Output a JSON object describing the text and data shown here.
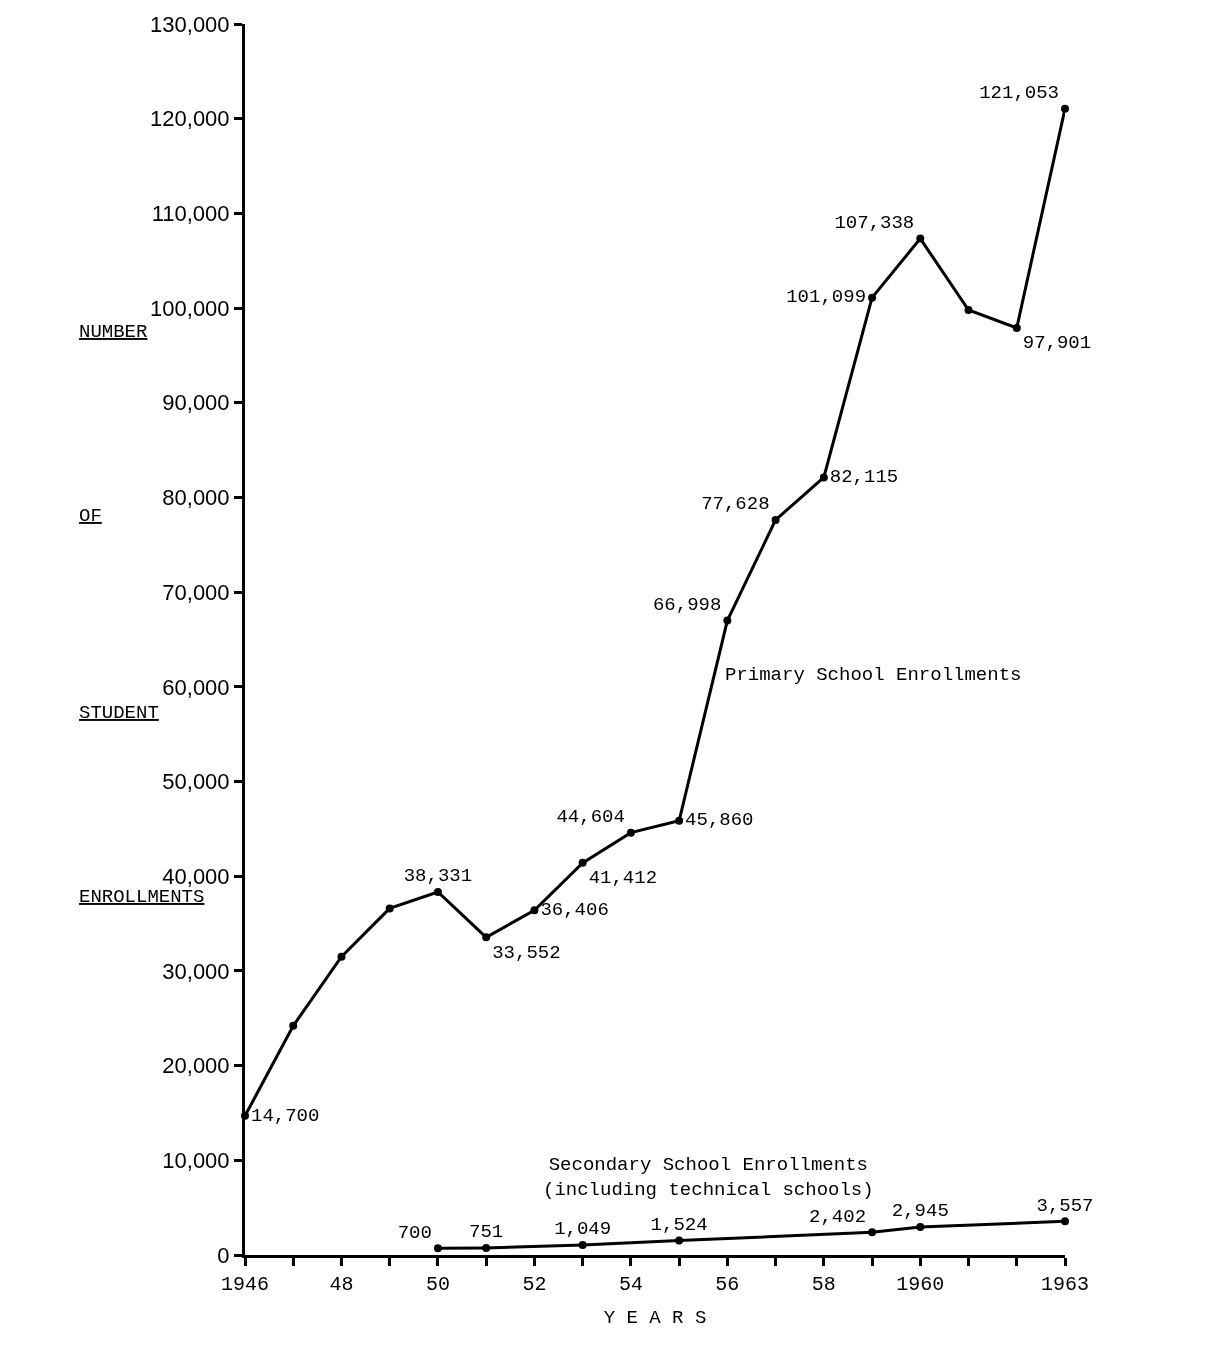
{
  "chart_data": {
    "type": "line",
    "xlabel": "Y E A R S",
    "ylabel": "NUMBER\nOF\nSTUDENT\nENROLLMENTS",
    "xlim": [
      1946,
      1963
    ],
    "xticks": [
      {
        "value": 1946,
        "label": "1946"
      },
      {
        "value": 1947,
        "label": null
      },
      {
        "value": 1948,
        "label": "48"
      },
      {
        "value": 1949,
        "label": null
      },
      {
        "value": 1950,
        "label": "50"
      },
      {
        "value": 1951,
        "label": null
      },
      {
        "value": 1952,
        "label": "52"
      },
      {
        "value": 1953,
        "label": null
      },
      {
        "value": 1954,
        "label": "54"
      },
      {
        "value": 1955,
        "label": null
      },
      {
        "value": 1956,
        "label": "56"
      },
      {
        "value": 1957,
        "label": null
      },
      {
        "value": 1958,
        "label": "58"
      },
      {
        "value": 1959,
        "label": null
      },
      {
        "value": 1960,
        "label": "1960"
      },
      {
        "value": 1961,
        "label": null
      },
      {
        "value": 1962,
        "label": null
      },
      {
        "value": 1963,
        "label": "1963"
      }
    ],
    "ylim": [
      0,
      130000
    ],
    "yticks": [
      {
        "value": 0,
        "label": "0"
      },
      {
        "value": 10000,
        "label": "10,000"
      },
      {
        "value": 20000,
        "label": "20,000"
      },
      {
        "value": 30000,
        "label": "30,000"
      },
      {
        "value": 40000,
        "label": "40,000"
      },
      {
        "value": 50000,
        "label": "50,000"
      },
      {
        "value": 60000,
        "label": "60,000"
      },
      {
        "value": 70000,
        "label": "70,000"
      },
      {
        "value": 80000,
        "label": "80,000"
      },
      {
        "value": 90000,
        "label": "90,000"
      },
      {
        "value": 100000,
        "label": "100,000"
      },
      {
        "value": 110000,
        "label": "110,000"
      },
      {
        "value": 120000,
        "label": "120,000"
      },
      {
        "value": 130000,
        "label": "130,000"
      }
    ],
    "legend": false,
    "marker": "circle",
    "line_style": "solid",
    "series": [
      {
        "name": "Primary School Enrollments",
        "color": "#000000",
        "x": [
          1946,
          1947,
          1948,
          1949,
          1950,
          1951,
          1952,
          1953,
          1954,
          1955,
          1956,
          1957,
          1958,
          1959,
          1960,
          1961,
          1962,
          1963
        ],
        "values": [
          14700,
          24200,
          31500,
          36600,
          38331,
          33552,
          36406,
          41412,
          44604,
          45860,
          66998,
          77628,
          82115,
          101099,
          107338,
          99800,
          97901,
          121053
        ],
        "value_labels": [
          "14,700",
          null,
          null,
          null,
          "38,331",
          "33,552",
          "36,406",
          "41,412",
          "44,604",
          "45,860",
          "66,998",
          "77,628",
          "82,115",
          "101,099",
          "107,338",
          null,
          "97,901",
          "121,053"
        ]
      },
      {
        "name": "Secondary School Enrollments\n(including technical schools)",
        "color": "#000000",
        "x": [
          1950,
          1951,
          1953,
          1955,
          1959,
          1960,
          1963
        ],
        "values": [
          700,
          751,
          1049,
          1524,
          2402,
          2945,
          3557
        ],
        "value_labels": [
          "700",
          "751",
          "1,049",
          "1,524",
          "2,402",
          "2,945",
          "3,557"
        ]
      }
    ]
  }
}
